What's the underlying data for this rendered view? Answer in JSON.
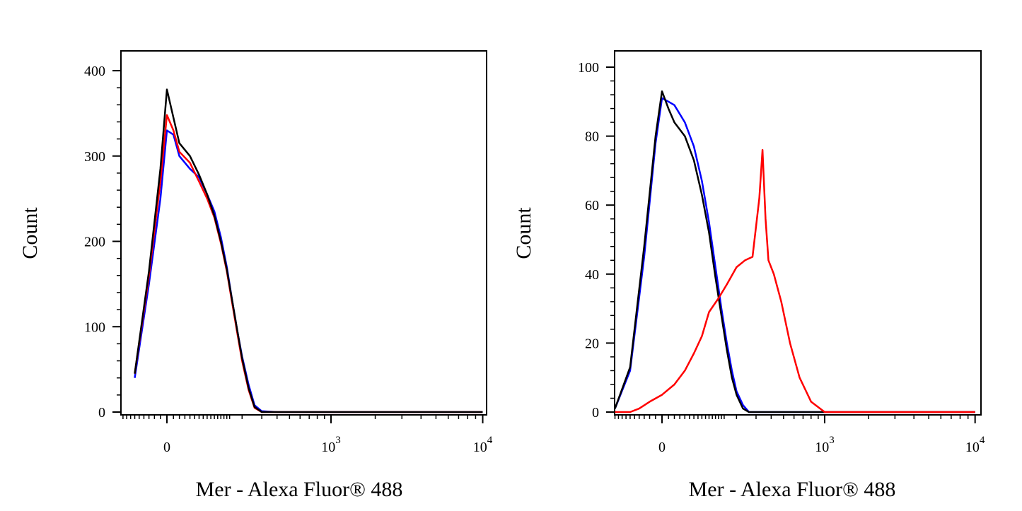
{
  "chart_data": [
    {
      "type": "line",
      "panel": "left",
      "xlabel": "Mer - Alexa Fluor® 488",
      "ylabel": "Count",
      "x_scale": "biexponential",
      "x_ticks": [
        {
          "value": 0,
          "base": "0",
          "exp": ""
        },
        {
          "value": 1000,
          "base": "10",
          "exp": "3"
        },
        {
          "value": 10000,
          "base": "10",
          "exp": "4"
        }
      ],
      "y_ticks": [
        "0",
        "100",
        "200",
        "300",
        "400"
      ],
      "ylim": [
        0,
        400
      ],
      "grid": false,
      "series": [
        {
          "color": "#0000ff",
          "x": [
            -150,
            -100,
            -60,
            -30,
            -10,
            0,
            10,
            20,
            40,
            60,
            80,
            100,
            120,
            140,
            160,
            180,
            200,
            230,
            260,
            300,
            400,
            600,
            1000,
            3000,
            10000,
            20000
          ],
          "values": [
            0,
            5,
            40,
            150,
            250,
            330,
            325,
            300,
            285,
            275,
            255,
            235,
            205,
            170,
            130,
            95,
            65,
            32,
            8,
            1,
            0,
            0,
            0,
            0,
            0,
            0
          ]
        },
        {
          "color": "#ff0000",
          "x": [
            -150,
            -100,
            -60,
            -30,
            -10,
            0,
            10,
            20,
            40,
            60,
            80,
            100,
            120,
            140,
            160,
            180,
            200,
            230,
            260,
            300,
            400,
            600,
            1000,
            3000,
            10000,
            20000
          ],
          "values": [
            0,
            5,
            45,
            160,
            270,
            348,
            330,
            305,
            292,
            270,
            250,
            228,
            198,
            165,
            127,
            92,
            60,
            26,
            5,
            0,
            0,
            0,
            0,
            0,
            0,
            0
          ]
        },
        {
          "color": "#000000",
          "x": [
            -150,
            -100,
            -60,
            -30,
            -10,
            0,
            10,
            20,
            40,
            60,
            80,
            100,
            120,
            140,
            160,
            180,
            200,
            230,
            260,
            300,
            400,
            600,
            1000,
            3000,
            10000,
            20000
          ],
          "values": [
            0,
            5,
            45,
            165,
            285,
            378,
            345,
            315,
            300,
            278,
            255,
            230,
            200,
            167,
            130,
            95,
            63,
            28,
            6,
            0,
            0,
            0,
            0,
            0,
            0,
            0
          ]
        }
      ]
    },
    {
      "type": "line",
      "panel": "right",
      "xlabel": "Mer - Alexa Fluor® 488",
      "ylabel": "Count",
      "x_scale": "biexponential",
      "x_ticks": [
        {
          "value": 0,
          "base": "0",
          "exp": ""
        },
        {
          "value": 1000,
          "base": "10",
          "exp": "3"
        },
        {
          "value": 10000,
          "base": "10",
          "exp": "4"
        }
      ],
      "y_ticks": [
        "0",
        "20",
        "40",
        "60",
        "80",
        "100"
      ],
      "ylim": [
        0,
        100
      ],
      "grid": false,
      "series": [
        {
          "color": "#0000ff",
          "x": [
            -150,
            -100,
            -60,
            -30,
            -10,
            0,
            10,
            20,
            40,
            60,
            80,
            100,
            120,
            140,
            160,
            180,
            200,
            230,
            260,
            300,
            400,
            600,
            1000,
            3000,
            10000,
            20000
          ],
          "values": [
            0,
            1,
            12,
            45,
            78,
            91,
            90,
            89,
            84,
            77,
            67,
            55,
            42,
            30,
            20,
            12,
            6,
            2,
            0,
            0,
            0,
            0,
            0,
            0,
            0,
            0
          ]
        },
        {
          "color": "#000000",
          "x": [
            -150,
            -100,
            -60,
            -30,
            -10,
            0,
            10,
            20,
            40,
            60,
            80,
            100,
            120,
            140,
            160,
            180,
            200,
            230,
            260,
            300,
            400,
            600,
            1000,
            3000,
            10000,
            20000
          ],
          "values": [
            0,
            1,
            13,
            48,
            80,
            93,
            88,
            84,
            80,
            73,
            63,
            52,
            39,
            28,
            18,
            10,
            5,
            1,
            0,
            0,
            0,
            0,
            0,
            0,
            0,
            0
          ]
        },
        {
          "color": "#ff0000",
          "x": [
            -150,
            -100,
            -60,
            -40,
            -20,
            0,
            20,
            40,
            60,
            80,
            100,
            130,
            160,
            200,
            240,
            280,
            320,
            340,
            360,
            380,
            420,
            480,
            560,
            660,
            800,
            1000,
            1300,
            1700,
            3000,
            10000,
            20000
          ],
          "values": [
            0,
            0,
            0,
            1,
            3,
            5,
            8,
            12,
            17,
            22,
            29,
            33,
            37,
            42,
            44,
            45,
            62,
            76,
            56,
            44,
            40,
            32,
            20,
            10,
            3,
            0,
            0,
            0,
            0,
            0,
            0
          ]
        }
      ]
    }
  ]
}
